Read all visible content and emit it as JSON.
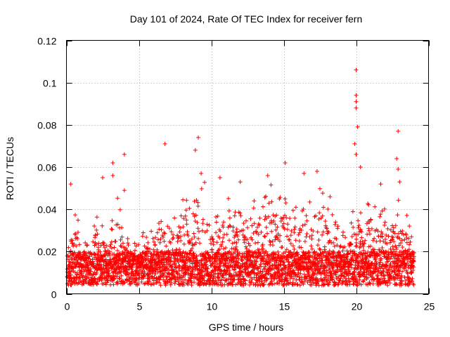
{
  "chart_data": {
    "type": "scatter",
    "title": "Day 101 of 2024, Rate Of TEC Index for receiver fern",
    "xlabel": "GPS time / hours",
    "ylabel": "ROTI / TECUs",
    "xlim": [
      0,
      25
    ],
    "ylim": [
      0,
      0.12
    ],
    "xticks": [
      0,
      5,
      10,
      15,
      20,
      25
    ],
    "xtick_labels": [
      "0",
      "5",
      "10",
      "15",
      "20",
      "25"
    ],
    "yticks": [
      0,
      0.02,
      0.04,
      0.06,
      0.08,
      0.1,
      0.12
    ],
    "ytick_labels": [
      "0",
      "0.02",
      "0.04",
      "0.06",
      "0.08",
      "0.1",
      "0.12"
    ],
    "grid": true,
    "marker": "+",
    "marker_color": "#ff0000",
    "series": [
      {
        "name": "ROTI",
        "color": "#ff0000",
        "description": "dense ROTI samples 0–24 h, baseline ~0.01–0.02 TECU/s",
        "envelope_hours": [
          0,
          0.5,
          1,
          1.5,
          2,
          2.5,
          3,
          3.5,
          4,
          4.5,
          5,
          5.5,
          6,
          6.5,
          7,
          7.5,
          8,
          8.5,
          9,
          9.5,
          10,
          10.5,
          11,
          11.5,
          12,
          12.5,
          13,
          13.5,
          14,
          14.5,
          15,
          15.5,
          16,
          16.5,
          17,
          17.5,
          18,
          18.5,
          19,
          19.5,
          20,
          20.5,
          21,
          21.5,
          22,
          22.5,
          23,
          23.5,
          24
        ],
        "envelope_upper": [
          0.024,
          0.043,
          0.03,
          0.025,
          0.038,
          0.035,
          0.03,
          0.048,
          0.03,
          0.025,
          0.024,
          0.033,
          0.03,
          0.038,
          0.036,
          0.04,
          0.045,
          0.05,
          0.05,
          0.055,
          0.035,
          0.038,
          0.05,
          0.04,
          0.042,
          0.038,
          0.045,
          0.045,
          0.055,
          0.05,
          0.055,
          0.04,
          0.045,
          0.045,
          0.048,
          0.055,
          0.045,
          0.035,
          0.03,
          0.03,
          0.05,
          0.04,
          0.045,
          0.04,
          0.042,
          0.04,
          0.05,
          0.04,
          0.025
        ],
        "spikes": [
          {
            "x": 0.3,
            "y": 0.052
          },
          {
            "x": 2.5,
            "y": 0.055
          },
          {
            "x": 3.2,
            "y": 0.062
          },
          {
            "x": 3.2,
            "y": 0.056
          },
          {
            "x": 4.0,
            "y": 0.066
          },
          {
            "x": 4.0,
            "y": 0.049
          },
          {
            "x": 6.8,
            "y": 0.071
          },
          {
            "x": 8.9,
            "y": 0.068
          },
          {
            "x": 9.1,
            "y": 0.074
          },
          {
            "x": 9.3,
            "y": 0.057
          },
          {
            "x": 10.6,
            "y": 0.055
          },
          {
            "x": 12.0,
            "y": 0.053
          },
          {
            "x": 13.9,
            "y": 0.056
          },
          {
            "x": 15.1,
            "y": 0.062
          },
          {
            "x": 16.4,
            "y": 0.057
          },
          {
            "x": 17.3,
            "y": 0.058
          },
          {
            "x": 18.2,
            "y": 0.046
          },
          {
            "x": 19.9,
            "y": 0.071
          },
          {
            "x": 20.0,
            "y": 0.106
          },
          {
            "x": 20.0,
            "y": 0.094
          },
          {
            "x": 20.0,
            "y": 0.091
          },
          {
            "x": 20.0,
            "y": 0.088
          },
          {
            "x": 20.1,
            "y": 0.079
          },
          {
            "x": 20.0,
            "y": 0.066
          },
          {
            "x": 20.3,
            "y": 0.06
          },
          {
            "x": 22.9,
            "y": 0.077
          },
          {
            "x": 22.8,
            "y": 0.064
          },
          {
            "x": 22.9,
            "y": 0.059
          },
          {
            "x": 23.0,
            "y": 0.053
          },
          {
            "x": 21.7,
            "y": 0.052
          }
        ]
      }
    ]
  }
}
